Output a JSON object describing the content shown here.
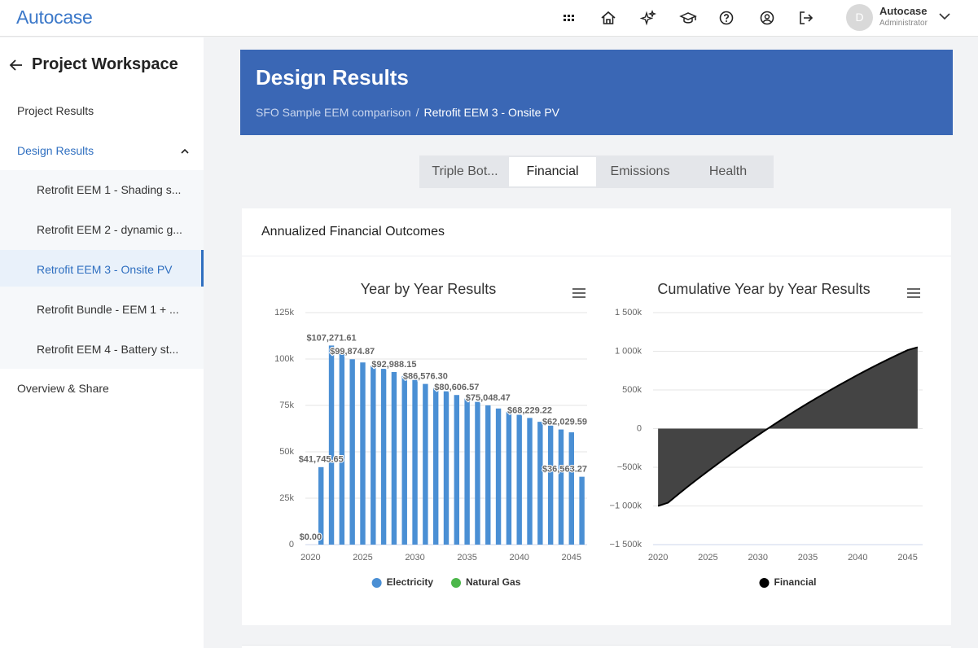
{
  "header": {
    "logo": "Autocase",
    "user_initial": "D",
    "user_name": "Autocase",
    "user_role": "Administrator"
  },
  "sidebar": {
    "title": "Project Workspace",
    "items": [
      "Project Results",
      "Design Results",
      "Overview & Share"
    ],
    "design_results_items": [
      "Retrofit EEM 1 - Shading s...",
      "Retrofit EEM 2 - dynamic g...",
      "Retrofit EEM 3 - Onsite PV",
      "Retrofit Bundle - EEM 1 + ...",
      "Retrofit EEM 4 - Battery st..."
    ]
  },
  "banner": {
    "title": "Design Results",
    "breadcrumb": [
      "SFO Sample EEM comparison",
      "Retrofit EEM 3 - Onsite PV"
    ]
  },
  "tabs": [
    "Triple Bot...",
    "Financial",
    "Emissions",
    "Health"
  ],
  "card": {
    "title": "Annualized Financial Outcomes"
  },
  "chart_data": [
    {
      "type": "bar",
      "title": "Year by Year Results",
      "x": [
        2020,
        2021,
        2022,
        2023,
        2024,
        2025,
        2026,
        2027,
        2028,
        2029,
        2030,
        2031,
        2032,
        2033,
        2034,
        2035,
        2036,
        2037,
        2038,
        2039,
        2040,
        2041,
        2042,
        2043,
        2044,
        2045,
        2046
      ],
      "xlim": [
        2019.5,
        2046.5
      ],
      "xticks": [
        2020,
        2025,
        2030,
        2035,
        2040,
        2045
      ],
      "ylim": [
        0,
        125000
      ],
      "yticks": [
        0,
        {
          "value": 25000,
          "label": "25k"
        },
        {
          "value": 50000,
          "label": "50k"
        },
        {
          "value": 75000,
          "label": "75k"
        },
        {
          "value": 100000,
          "label": "100k"
        },
        {
          "value": 125000,
          "label": "125k"
        }
      ],
      "grid": true,
      "legend": "bottom",
      "series": [
        {
          "name": "Electricity",
          "color": "#4a8fd4",
          "values": [
            0,
            41745.65,
            107271.61,
            103500,
            99874.87,
            98150,
            96430,
            94710,
            92988.15,
            90850,
            88710,
            86576.3,
            84590,
            82600,
            80606.57,
            78750,
            76900,
            75048.47,
            73340,
            71640,
            69930,
            68229.22,
            66160,
            64100,
            62029.59,
            60500,
            36563.27
          ],
          "value_labels": [
            "$0.00",
            "$41,745.65",
            "$107,271.61",
            null,
            "$99,874.87",
            null,
            null,
            null,
            "$92,988.15",
            null,
            null,
            "$86,576.30",
            null,
            null,
            "$80,606.57",
            null,
            null,
            "$75,048.47",
            null,
            null,
            null,
            "$68,229.22",
            null,
            null,
            "$62,029.59",
            null,
            "$36,563.27"
          ]
        },
        {
          "name": "Natural Gas",
          "color": "#4cb74a",
          "values": [
            0,
            0,
            0,
            0,
            0,
            0,
            0,
            0,
            0,
            0,
            0,
            0,
            0,
            0,
            0,
            0,
            0,
            0,
            0,
            0,
            0,
            0,
            0,
            0,
            0,
            0,
            0
          ]
        }
      ]
    },
    {
      "type": "area",
      "title": "Cumulative Year by Year Results",
      "x": [
        2020,
        2021,
        2022,
        2023,
        2024,
        2025,
        2026,
        2027,
        2028,
        2029,
        2030,
        2031,
        2032,
        2033,
        2034,
        2035,
        2036,
        2037,
        2038,
        2039,
        2040,
        2041,
        2042,
        2043,
        2044,
        2045,
        2046
      ],
      "xlim": [
        2019.5,
        2046.5
      ],
      "xticks": [
        2020,
        2025,
        2030,
        2035,
        2040,
        2045
      ],
      "ylim": [
        -1500000,
        1500000
      ],
      "yticks": [
        {
          "value": -1500000,
          "label": "−1 500k"
        },
        {
          "value": -1000000,
          "label": "−1 000k"
        },
        {
          "value": -500000,
          "label": "−500k"
        },
        0,
        {
          "value": 500000,
          "label": "500k"
        },
        {
          "value": 1000000,
          "label": "1 000k"
        },
        {
          "value": 1500000,
          "label": "1 500k"
        }
      ],
      "grid": true,
      "legend": "bottom",
      "series": [
        {
          "name": "Financial",
          "color": "#000000",
          "fill": "#444444",
          "values": [
            -1000000,
            -958254,
            -850983,
            -747483,
            -647608,
            -549458,
            -453028,
            -358318,
            -265330,
            -174480,
            -85770,
            806,
            85396,
            167996,
            248603,
            327353,
            404253,
            479301,
            552641,
            624281,
            694211,
            762440,
            828600,
            892700,
            954730,
            1015230,
            1051793
          ]
        }
      ]
    }
  ]
}
